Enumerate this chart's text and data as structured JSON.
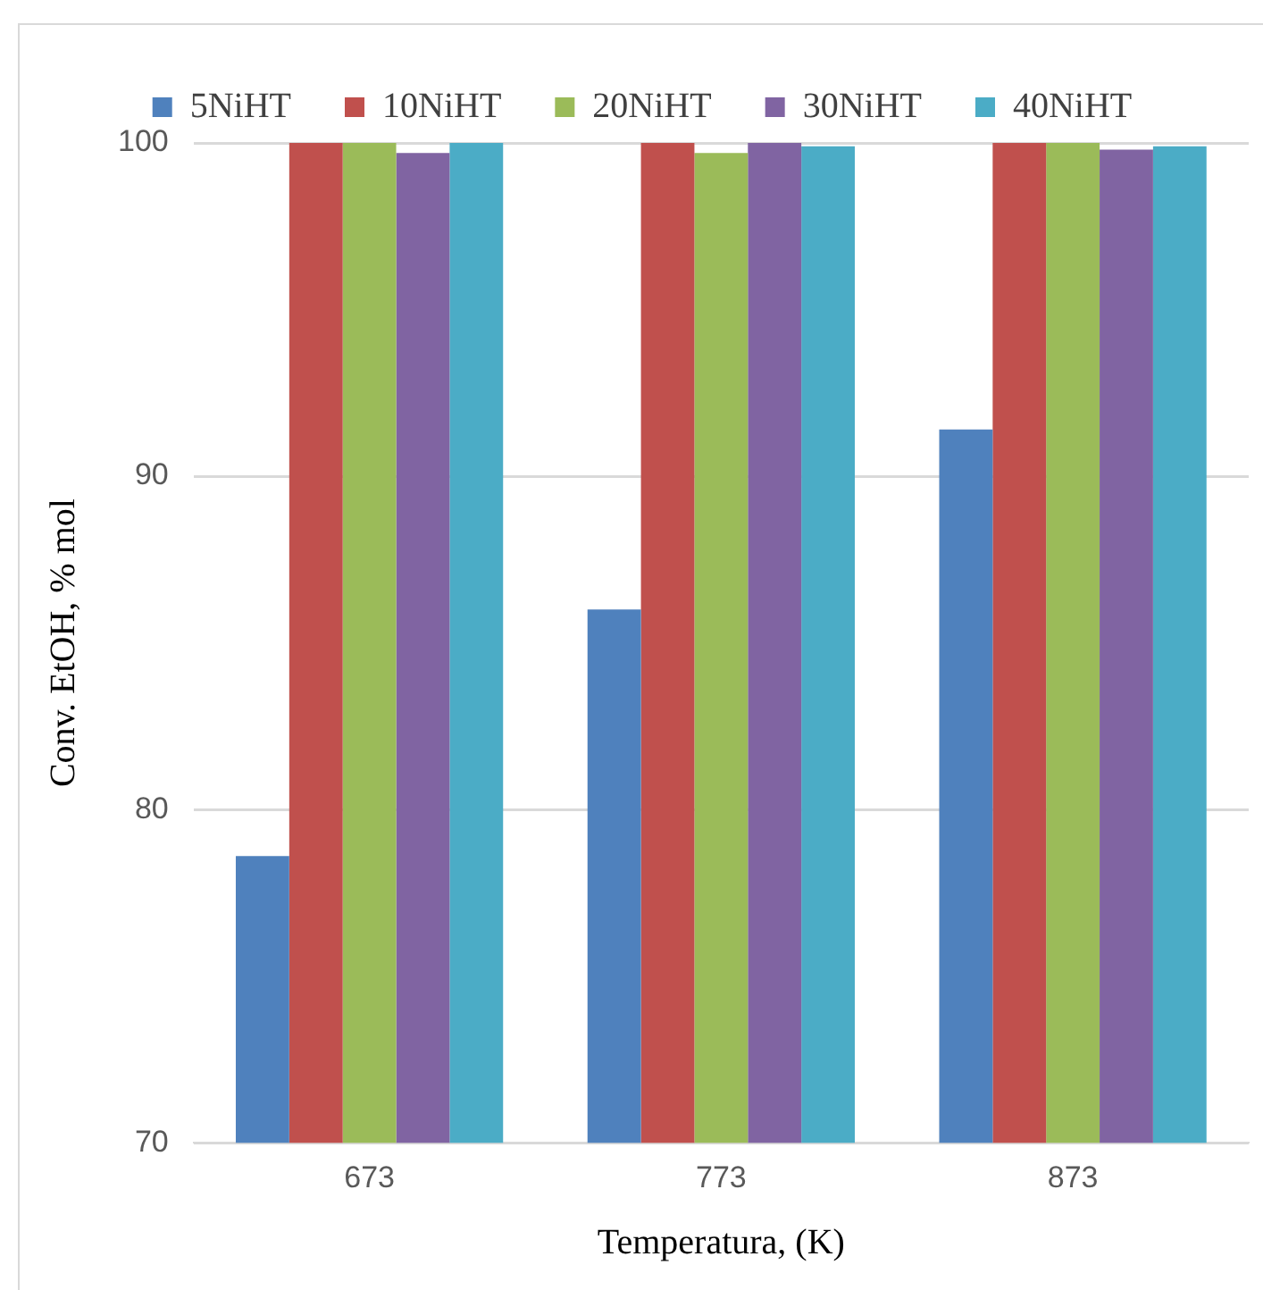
{
  "chart_data": {
    "type": "bar",
    "xlabel": "Temperatura, (K)",
    "ylabel": "Conv. EtOH, % mol",
    "categories": [
      "673",
      "773",
      "873"
    ],
    "series": [
      {
        "name": "5NiHT",
        "color": "#4f81bd",
        "values": [
          78.6,
          86.0,
          91.4
        ]
      },
      {
        "name": "10NiHT",
        "color": "#c0504d",
        "values": [
          100,
          100,
          100
        ]
      },
      {
        "name": "20NiHT",
        "color": "#9bbb59",
        "values": [
          100,
          99.7,
          100
        ]
      },
      {
        "name": "30NiHT",
        "color": "#8064a2",
        "values": [
          99.7,
          100,
          99.8
        ]
      },
      {
        "name": "40NiHT",
        "color": "#4bacc6",
        "values": [
          100,
          99.9,
          99.9
        ]
      }
    ],
    "ylim": [
      70,
      100
    ],
    "yticks": [
      70,
      80,
      90,
      100
    ],
    "grid": "y",
    "legend": "top"
  }
}
